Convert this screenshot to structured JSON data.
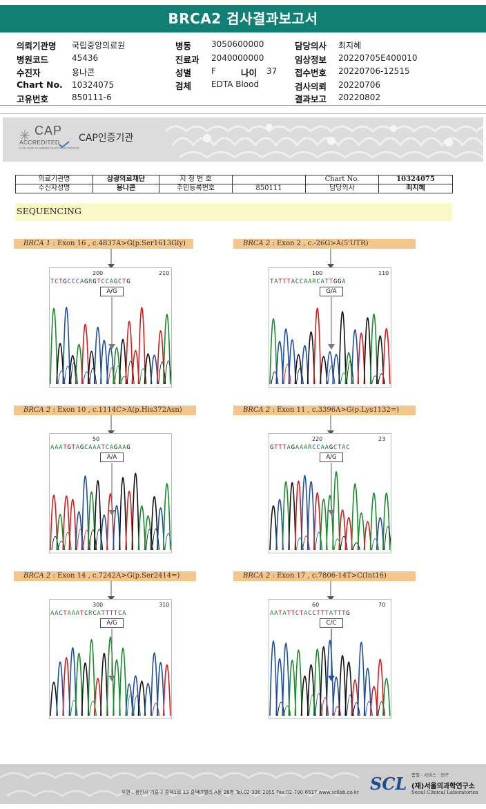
{
  "report": {
    "title": "BRCA2 검사결과보고서"
  },
  "header": {
    "rows": [
      [
        {
          "label": "의뢰기관명",
          "value": "국립중앙의료원"
        },
        {
          "label": "병동",
          "value": "3050600000"
        },
        {
          "label": "담당의사",
          "value": "최지혜"
        }
      ],
      [
        {
          "label": "병원코드",
          "value": "45436"
        },
        {
          "label": "진료과",
          "value": "2040000000"
        },
        {
          "label": "임상정보",
          "value": "20220705E400010"
        }
      ],
      [
        {
          "label": "수진자",
          "value": "용나콘"
        },
        {
          "label": "성별",
          "value": "F"
        },
        {
          "label": "접수번호",
          "value": "20220706-12515"
        }
      ],
      [
        {
          "label": "Chart No.",
          "value": "10324075"
        },
        {
          "label": "검체",
          "value": "EDTA Blood"
        },
        {
          "label": "검사의뢰",
          "value": "20220706"
        }
      ],
      [
        {
          "label": "고유번호",
          "value": "850111-6"
        },
        {
          "label": "",
          "value": ""
        },
        {
          "label": "결과보고",
          "value": "20220802"
        }
      ]
    ],
    "age_label": "나이",
    "age_value": "37"
  },
  "cap": {
    "logo_text": "CAP",
    "accredited": "ACCREDITED",
    "org_small": "COLLEGE of AMERICAN PATHOLOGISTS",
    "cert_label": "CAP인증기관"
  },
  "info_table": {
    "r1": [
      "의료기관명",
      "삼광의료재단",
      "지 정 번 호",
      "",
      "Chart No.",
      "10324075"
    ],
    "r2": [
      "수신자성명",
      "용나콘",
      "주민등록번호",
      "850111",
      "담당의사",
      "최지혜"
    ]
  },
  "section": {
    "title": "SEQUENCING"
  },
  "panels": [
    {
      "gene": "BRCA 1",
      "desc": " : Exon 16 , c.4837A>G(p.Ser1613Gly)",
      "seq": "TCTGCCCAGRGTCCAGCTG",
      "num_a": "200",
      "num_b": "210",
      "call": "A/G",
      "arrow": "#7a7a7a"
    },
    {
      "gene": "BRCA 2",
      "desc": " : Exon 2 , c.-26G>A(5'UTR)",
      "seq": "TATTTACCAARCATTGGA",
      "num_a": "100",
      "num_b": "110",
      "call": "G/A",
      "arrow": "#7a7a7a"
    },
    {
      "gene": "BRCA 2",
      "desc": " : Exon 10 , c.1114C>A(p.His372Asn)",
      "seq": "AAATGTAGCAAATCAGAAG",
      "num_a": "50",
      "num_b": "",
      "call": "A/A",
      "arrow": "#7a7a7a"
    },
    {
      "gene": "BRCA 2",
      "desc": " : Exon 11 , c.3396A>G(p.Lys1132=)",
      "seq": "GTTTAGAAARCCAAGCTAC",
      "num_a": "220",
      "num_b": "23",
      "call": "A/G",
      "arrow": "#7a7a7a"
    },
    {
      "gene": "BRCA 2",
      "desc": " : Exon 14 , c.7242A>G(p.Ser2414=)",
      "seq": "AACTAAATCRCATTTTCA",
      "num_a": "300",
      "num_b": "310",
      "call": "A/G",
      "arrow": "#7a7a7a"
    },
    {
      "gene": "BRCA 2",
      "desc": " : Exon 17 , c.7806-14T>C(Int16)",
      "seq": "AATATTCTACCTTTATTTG",
      "num_a": "60",
      "num_b": "70",
      "call": "C/C",
      "arrow": "#1f4f9c"
    }
  ],
  "footer": {
    "address": "우편 : 용인시 기흥구 흥덕1로 13 흥덕IT밸리 A동 26층   Tel.02-330-2055  Fax.02-790-6517  www.scllab.co.kr",
    "scl": "SCL",
    "tagline": "품질 · 서비스 · 연구",
    "org": "(재)서울의과학연구소",
    "org_en": "Seoul Clinical Laboratories"
  }
}
